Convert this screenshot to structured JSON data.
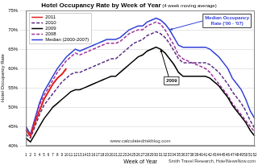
{
  "chart_data": {
    "type": "line",
    "title": "Hotel Occupancy Rate by Week of Year",
    "subtitle": "(4 week moving average)",
    "x_label": "Week of Year",
    "y_label": "Hotel Occupancy Rate",
    "source": "Smith Travel Research, HotelNewsNow.com",
    "watermark": "www.calculatedriskblog.com",
    "annotations": [
      {
        "text": "Median Occupancy Rate ('00 - '07)",
        "x": 33,
        "y": 70
      },
      {
        "text": "2009",
        "x": 31,
        "y": 65
      }
    ],
    "categories": [
      1,
      2,
      3,
      4,
      5,
      6,
      7,
      8,
      9,
      10,
      11,
      12,
      13,
      14,
      15,
      16,
      17,
      18,
      19,
      20,
      21,
      22,
      23,
      24,
      25,
      26,
      27,
      28,
      29,
      30,
      31,
      32,
      33,
      34,
      35,
      36,
      37,
      38,
      39,
      40,
      41,
      42,
      43,
      44,
      45,
      46,
      47,
      48,
      49,
      50,
      51,
      52
    ],
    "series": [
      {
        "name": "2011",
        "color": "#e0201c",
        "line_style": "solid",
        "values": [
          44,
          42.5,
          46,
          49,
          52,
          54,
          56,
          57.5,
          58.5,
          60,
          null,
          null,
          null,
          null,
          null,
          null,
          null,
          null,
          null,
          null,
          null,
          null,
          null,
          null,
          null,
          null,
          null,
          null,
          null,
          null,
          null,
          null,
          null,
          null,
          null,
          null,
          null,
          null,
          null,
          null,
          null,
          null,
          null,
          null,
          null,
          null,
          null,
          null,
          null,
          null,
          null,
          null
        ]
      },
      {
        "name": "2010",
        "color": "#5a2d82",
        "line_style": "dashed",
        "values": [
          43,
          42,
          45,
          48,
          50.5,
          52,
          53.5,
          55,
          56.5,
          57.5,
          58.5,
          59,
          59,
          59.5,
          60,
          60.5,
          61,
          61.5,
          62,
          62.5,
          62.5,
          63.5,
          64.5,
          65.5,
          66.5,
          67,
          67.5,
          68.5,
          69,
          69.5,
          69,
          68,
          66.5,
          64.5,
          62.5,
          61.5,
          61.5,
          61.5,
          61.5,
          61.5,
          61.5,
          61,
          60,
          59,
          57.5,
          56,
          54,
          52.5,
          51,
          49,
          46.5,
          44.5
        ]
      },
      {
        "name": "2009",
        "color": "#000000",
        "line_style": "solid",
        "values": [
          42,
          41,
          43,
          45,
          47,
          48.5,
          50,
          51,
          52,
          53,
          54,
          54.5,
          54.5,
          55,
          55.5,
          56,
          56.5,
          57,
          57.5,
          58,
          58,
          59,
          60,
          61,
          62,
          63,
          63.5,
          64.5,
          65,
          65.5,
          65,
          64,
          62.5,
          61,
          59,
          58,
          58,
          58,
          58,
          58,
          58,
          57.5,
          56.5,
          55.5,
          54,
          52.5,
          50.5,
          49,
          47.5,
          46,
          44,
          42.5
        ]
      },
      {
        "name": "2008",
        "color": "#a0309a",
        "line_style": "dashed",
        "values": [
          44.5,
          43,
          46.5,
          50.5,
          53,
          55,
          57,
          59,
          60.5,
          62,
          63,
          64,
          63.5,
          64,
          64.5,
          65,
          65.5,
          66,
          66.5,
          66.5,
          66.5,
          67,
          68,
          69,
          69.5,
          70,
          70,
          71,
          71.5,
          72,
          71.5,
          70,
          68,
          66,
          63.5,
          62.5,
          62,
          61.5,
          61,
          60.5,
          60,
          59,
          57.5,
          56,
          54.5,
          53,
          51,
          49.5,
          48,
          46.5,
          45,
          43.5
        ]
      },
      {
        "name": "Median (2000-2007)",
        "color": "#2f3fd6",
        "line_style": "solid",
        "values": [
          45,
          43,
          47,
          51,
          54,
          56,
          58,
          60,
          61.5,
          63,
          64,
          65,
          64.5,
          65,
          65.5,
          66,
          66.5,
          67,
          67.5,
          67.5,
          67.5,
          68,
          69,
          70,
          70.5,
          71,
          71,
          72,
          72.5,
          73,
          72.5,
          71.5,
          70,
          68,
          66,
          65.5,
          65.5,
          65.5,
          65.5,
          65.5,
          65.5,
          65,
          64,
          63,
          61.5,
          60,
          57.5,
          56,
          54.5,
          52,
          49,
          47
        ]
      }
    ],
    "ylim": [
      40,
      75
    ],
    "yticks": [
      {
        "value": 40,
        "label": "40%"
      },
      {
        "value": 45,
        "label": "45%"
      },
      {
        "value": 50,
        "label": "50%"
      },
      {
        "value": 55,
        "label": "55%"
      },
      {
        "value": 60,
        "label": "60%"
      },
      {
        "value": 65,
        "label": "65%"
      },
      {
        "value": 70,
        "label": "70%"
      },
      {
        "value": 75,
        "label": "75%"
      }
    ],
    "grid": true,
    "legend": "top-left"
  }
}
